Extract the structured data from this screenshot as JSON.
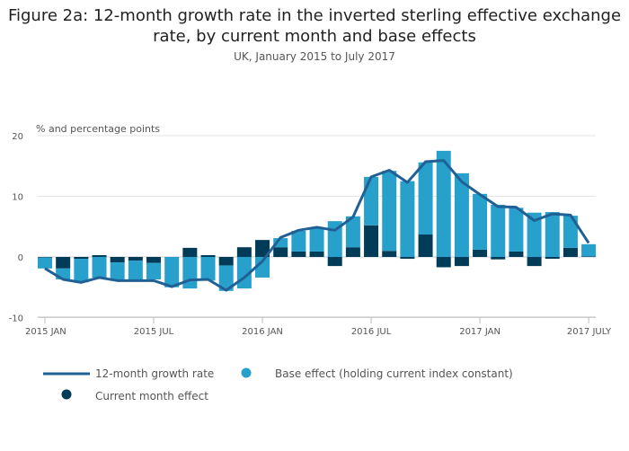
{
  "chart_data": {
    "type": "bar",
    "title": "Figure 2a: 12-month growth rate in the inverted sterling effective exchange rate, by current month and base effects",
    "subtitle": "UK, January 2015 to July 2017",
    "ylabel": "% and percentage points",
    "ylim": [
      -10,
      20
    ],
    "yticks": [
      -10,
      0,
      10,
      20
    ],
    "grid": true,
    "stacked": true,
    "xtick_labels": [
      {
        "index": 0,
        "label": "2015 JAN"
      },
      {
        "index": 6,
        "label": "2015 JUL"
      },
      {
        "index": 12,
        "label": "2016 JAN"
      },
      {
        "index": 18,
        "label": "2016 JUL"
      },
      {
        "index": 24,
        "label": "2017 JAN"
      },
      {
        "index": 30,
        "label": "2017 JULY"
      }
    ],
    "categories": [
      "2015-01",
      "2015-02",
      "2015-03",
      "2015-04",
      "2015-05",
      "2015-06",
      "2015-07",
      "2015-08",
      "2015-09",
      "2015-10",
      "2015-11",
      "2015-12",
      "2016-01",
      "2016-02",
      "2016-03",
      "2016-04",
      "2016-05",
      "2016-06",
      "2016-07",
      "2016-08",
      "2016-09",
      "2016-10",
      "2016-11",
      "2016-12",
      "2017-01",
      "2017-02",
      "2017-03",
      "2017-04",
      "2017-05",
      "2017-06",
      "2017-07"
    ],
    "series": [
      {
        "name": "Current month effect",
        "type": "bar",
        "color": "#003c57",
        "values": [
          -0.1,
          -1.9,
          -0.3,
          0.3,
          -0.9,
          -0.6,
          -1.0,
          0.0,
          1.5,
          0.3,
          -1.4,
          1.6,
          2.8,
          1.6,
          0.9,
          0.9,
          -1.5,
          1.6,
          5.2,
          1.0,
          -0.3,
          3.7,
          -1.7,
          -1.5,
          1.2,
          -0.4,
          0.9,
          -1.5,
          -0.3,
          1.5,
          0.1
        ]
      },
      {
        "name": "Base effect (holding current index constant)",
        "type": "bar",
        "color": "#27a0cc",
        "values": [
          -1.8,
          -1.8,
          -3.9,
          -3.4,
          -3.0,
          -3.2,
          -2.7,
          -5.0,
          -5.2,
          -3.9,
          -4.2,
          -5.2,
          -3.4,
          1.5,
          3.4,
          3.9,
          5.9,
          5.1,
          8.0,
          13.2,
          12.5,
          11.9,
          17.5,
          13.8,
          9.2,
          8.6,
          7.2,
          7.3,
          7.4,
          5.3,
          2.0
        ]
      },
      {
        "name": "12-month growth rate",
        "type": "line",
        "color": "#206095",
        "values": [
          -1.9,
          -3.7,
          -4.2,
          -3.4,
          -3.9,
          -3.9,
          -3.9,
          -4.9,
          -3.8,
          -3.7,
          -5.5,
          -3.4,
          -0.7,
          3.2,
          4.4,
          4.9,
          4.4,
          6.6,
          13.2,
          14.3,
          12.3,
          15.7,
          15.9,
          12.4,
          10.3,
          8.3,
          8.2,
          6.0,
          7.1,
          6.9,
          2.3
        ]
      }
    ],
    "legend": {
      "placement": "bottom",
      "order": [
        "12-month growth rate",
        "Base effect (holding current index constant)",
        "Current month effect"
      ]
    }
  }
}
